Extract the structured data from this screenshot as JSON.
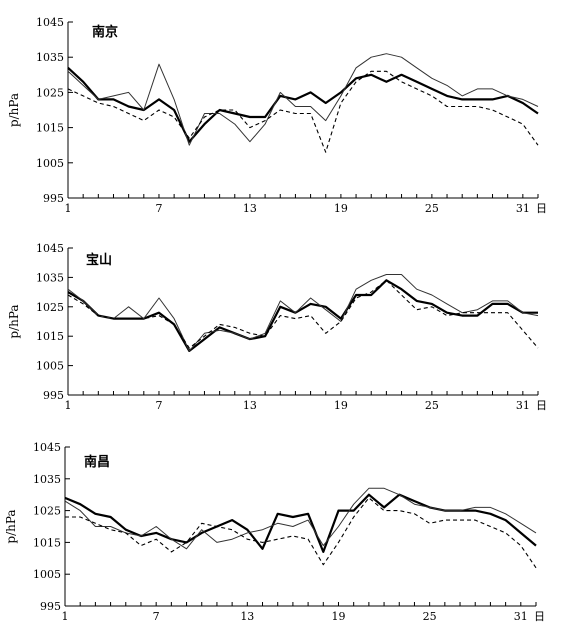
{
  "chart_data": [
    {
      "type": "line",
      "title": "南京",
      "ylabel": "p/hPa",
      "x_unit": "日",
      "ylim": [
        995,
        1045
      ],
      "xlim": [
        1,
        32
      ],
      "yticks": [
        995,
        1005,
        1015,
        1025,
        1035,
        1045
      ],
      "xticks": [
        1,
        7,
        13,
        19,
        25,
        31
      ],
      "x": [
        1,
        2,
        3,
        4,
        5,
        6,
        7,
        8,
        9,
        10,
        11,
        12,
        13,
        14,
        15,
        16,
        17,
        18,
        19,
        20,
        21,
        22,
        23,
        24,
        25,
        26,
        27,
        28,
        29,
        30,
        31,
        32
      ],
      "series": [
        {
          "style": "thick",
          "values": [
            1032,
            1028,
            1023,
            1023,
            1021,
            1020,
            1023,
            1020,
            1011,
            1016,
            1020,
            1019,
            1018,
            1018,
            1024,
            1023,
            1025,
            1022,
            1025,
            1029,
            1030,
            1028,
            1030,
            1028,
            1026,
            1024,
            1023,
            1023,
            1023,
            1024,
            1022,
            1019
          ]
        },
        {
          "style": "thin",
          "values": [
            1031,
            1027,
            1023,
            1024,
            1025,
            1020,
            1033,
            1023,
            1010,
            1019,
            1019,
            1016,
            1011,
            1016,
            1025,
            1021,
            1021,
            1017,
            1024,
            1032,
            1035,
            1036,
            1035,
            1032,
            1029,
            1027,
            1024,
            1026,
            1026,
            1024,
            1023,
            1021
          ]
        },
        {
          "style": "dashed",
          "values": [
            1026,
            1024,
            1022,
            1021,
            1019,
            1017,
            1020,
            1018,
            1012,
            1018,
            1020,
            1020,
            1015,
            1017,
            1020,
            1019,
            1019,
            1008,
            1022,
            1028,
            1031,
            1031,
            1028,
            1026,
            1024,
            1021,
            1021,
            1021,
            1020,
            1018,
            1016,
            1010
          ]
        }
      ]
    },
    {
      "type": "line",
      "title": "宝山",
      "ylabel": "p/hPa",
      "x_unit": "日",
      "ylim": [
        995,
        1045
      ],
      "xlim": [
        1,
        32
      ],
      "yticks": [
        995,
        1005,
        1015,
        1025,
        1035,
        1045
      ],
      "xticks": [
        1,
        7,
        13,
        19,
        25,
        31
      ],
      "x": [
        1,
        2,
        3,
        4,
        5,
        6,
        7,
        8,
        9,
        10,
        11,
        12,
        13,
        14,
        15,
        16,
        17,
        18,
        19,
        20,
        21,
        22,
        23,
        24,
        25,
        26,
        27,
        28,
        29,
        30,
        31,
        32
      ],
      "series": [
        {
          "style": "thick",
          "values": [
            1030,
            1027,
            1022,
            1021,
            1021,
            1021,
            1023,
            1019,
            1010,
            1014,
            1018,
            1016,
            1014,
            1015,
            1025,
            1023,
            1026,
            1025,
            1021,
            1029,
            1029,
            1034,
            1031,
            1027,
            1026,
            1023,
            1022,
            1022,
            1026,
            1026,
            1023,
            1023
          ]
        },
        {
          "style": "thin",
          "values": [
            1031,
            1027,
            1022,
            1021,
            1025,
            1021,
            1028,
            1021,
            1010,
            1016,
            1017,
            1016,
            1014,
            1016,
            1027,
            1023,
            1028,
            1024,
            1020,
            1031,
            1034,
            1036,
            1036,
            1031,
            1029,
            1026,
            1023,
            1024,
            1027,
            1027,
            1023,
            1022
          ]
        },
        {
          "style": "dashed",
          "values": [
            1029,
            1026,
            1022,
            1021,
            1021,
            1021,
            1022,
            1019,
            1011,
            1015,
            1019,
            1018,
            1016,
            1015,
            1022,
            1021,
            1022,
            1016,
            1020,
            1028,
            1030,
            1034,
            1029,
            1024,
            1025,
            1022,
            1023,
            1023,
            1023,
            1023,
            1017,
            1011
          ]
        }
      ]
    },
    {
      "type": "line",
      "title": "南昌",
      "ylabel": "p/hPa",
      "x_unit": "日",
      "ylim": [
        995,
        1045
      ],
      "xlim": [
        1,
        32
      ],
      "yticks": [
        995,
        1005,
        1015,
        1025,
        1035,
        1045
      ],
      "xticks": [
        1,
        7,
        13,
        19,
        25,
        31
      ],
      "x": [
        1,
        2,
        3,
        4,
        5,
        6,
        7,
        8,
        9,
        10,
        11,
        12,
        13,
        14,
        15,
        16,
        17,
        18,
        19,
        20,
        21,
        22,
        23,
        24,
        25,
        26,
        27,
        28,
        29,
        30,
        31,
        32
      ],
      "series": [
        {
          "style": "thick",
          "values": [
            1029,
            1027,
            1024,
            1023,
            1019,
            1017,
            1018,
            1016,
            1015,
            1018,
            1020,
            1022,
            1019,
            1013,
            1024,
            1023,
            1024,
            1012,
            1025,
            1025,
            1030,
            1026,
            1030,
            1028,
            1026,
            1025,
            1025,
            1025,
            1024,
            1022,
            1018,
            1014
          ]
        },
        {
          "style": "thin",
          "values": [
            1028,
            1025,
            1020,
            1020,
            1018,
            1017,
            1020,
            1016,
            1013,
            1019,
            1015,
            1016,
            1018,
            1019,
            1021,
            1020,
            1022,
            1014,
            1020,
            1027,
            1032,
            1032,
            1030,
            1027,
            1026,
            1025,
            1025,
            1026,
            1026,
            1024,
            1021,
            1018
          ]
        },
        {
          "style": "dashed",
          "values": [
            1023,
            1023,
            1021,
            1019,
            1018,
            1014,
            1016,
            1012,
            1015,
            1021,
            1020,
            1019,
            1016,
            1015,
            1016,
            1017,
            1016,
            1008,
            1015,
            1023,
            1029,
            1025,
            1025,
            1024,
            1021,
            1022,
            1022,
            1022,
            1020,
            1018,
            1014,
            1007
          ]
        }
      ]
    }
  ]
}
